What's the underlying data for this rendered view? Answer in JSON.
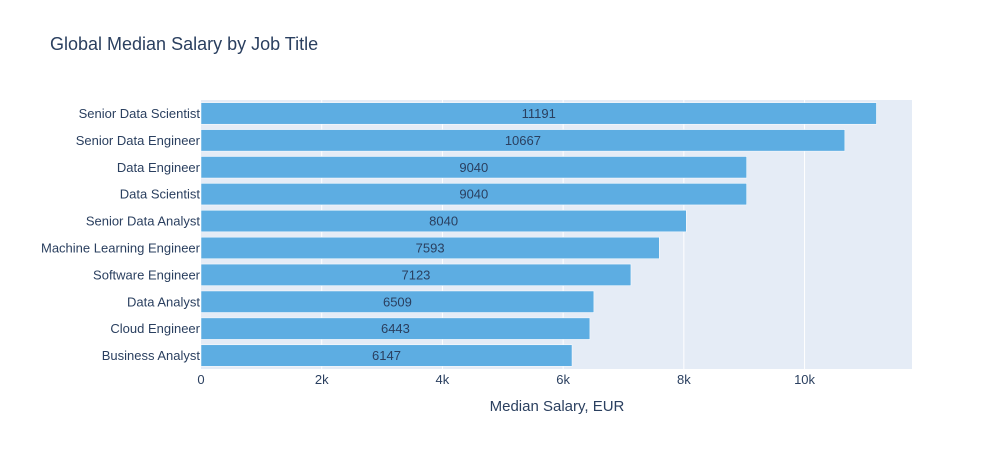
{
  "chart_data": {
    "type": "bar",
    "orientation": "horizontal",
    "title": "Global Median Salary by Job Title",
    "xlabel": "Median Salary, EUR",
    "ylabel": "",
    "categories": [
      "Senior Data Scientist",
      "Senior Data Engineer",
      "Data Engineer",
      "Data Scientist",
      "Senior Data Analyst",
      "Machine Learning Engineer",
      "Software Engineer",
      "Data Analyst",
      "Cloud Engineer",
      "Business Analyst"
    ],
    "values": [
      11191,
      10667,
      9040,
      9040,
      8040,
      7593,
      7123,
      6509,
      6443,
      6147
    ],
    "xlim": [
      0,
      11780
    ],
    "x_ticks": [
      0,
      2000,
      4000,
      6000,
      8000,
      10000
    ],
    "x_tick_labels": [
      "0",
      "2k",
      "4k",
      "6k",
      "8k",
      "10k"
    ],
    "grid": true,
    "colors": {
      "bar": "#5dade2",
      "plot_background": "#e5ecf6",
      "gridline": "#ffffff",
      "text": "#2a3f5f"
    }
  }
}
